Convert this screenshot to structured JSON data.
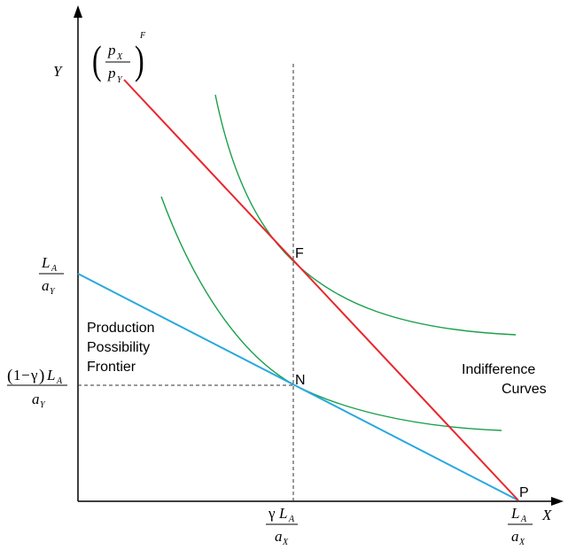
{
  "axes": {
    "y_label": "Y",
    "x_label": "X"
  },
  "price_ratio": {
    "num": "p",
    "num_sub": "X",
    "den": "p",
    "den_sub": "Y",
    "sup": "F"
  },
  "points": {
    "F": "F",
    "N": "N",
    "P": "P"
  },
  "labels": {
    "ppf": [
      "Production",
      "Possibility",
      "Frontier"
    ],
    "indifference": [
      "Indifference",
      "Curves"
    ]
  },
  "y_ticks": {
    "top": {
      "num": "L",
      "num_sub": "A",
      "den": "a",
      "den_sub": "Y"
    },
    "mid": {
      "paren_open": "(",
      "one": "1",
      "minus": "−",
      "gamma": "γ",
      "paren_close": ")",
      "num": "L",
      "num_sub": "A",
      "den": "a",
      "den_sub": "Y"
    }
  },
  "x_ticks": {
    "mid": {
      "gamma": "γ",
      "num": "L",
      "num_sub": "A",
      "den": "a",
      "den_sub": "X"
    },
    "end": {
      "num": "L",
      "num_sub": "A",
      "den": "a",
      "den_sub": "X"
    }
  },
  "colors": {
    "budget_line": "#e8262b",
    "ppf_line": "#29a8df",
    "indifference_curve": "#18a04a",
    "axis": "#000000",
    "dashed": "#333333"
  }
}
